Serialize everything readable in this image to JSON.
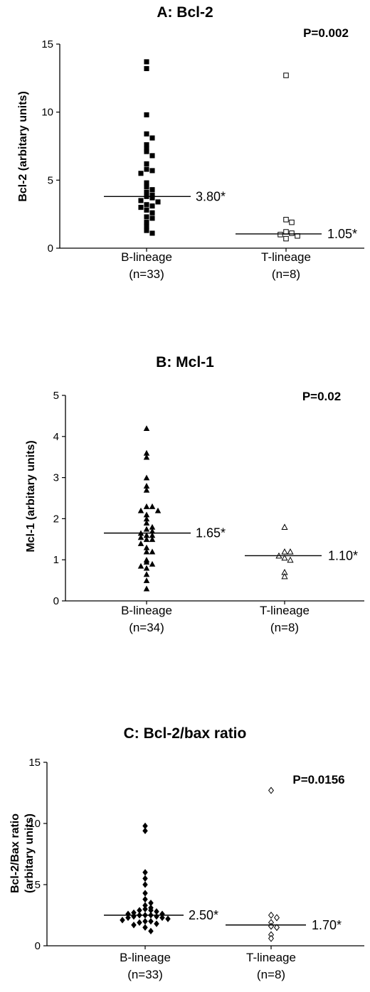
{
  "chart_data": [
    {
      "type": "scatter",
      "title": "A: Bcl-2",
      "annotation": "P=0.002",
      "ylabel": "Bcl-2 (arbitary units)",
      "ylim": [
        0,
        15
      ],
      "yticks": [
        "0",
        "5",
        "10",
        "15"
      ],
      "categories": [
        "B-lineage",
        "T-lineage"
      ],
      "category_counts": [
        "(n=33)",
        "(n=8)"
      ],
      "series": [
        {
          "category": "B-lineage",
          "marker": "filled-square",
          "median": 3.8,
          "median_label": "3.80*",
          "values": [
            13.7,
            13.2,
            9.8,
            8.4,
            8.1,
            7.6,
            7.3,
            7.1,
            6.8,
            6.2,
            5.8,
            5.7,
            5.5,
            4.8,
            4.5,
            4.3,
            4.1,
            3.9,
            3.8,
            3.7,
            3.5,
            3.4,
            3.2,
            3.1,
            3.0,
            2.8,
            2.6,
            2.3,
            2.2,
            1.9,
            1.6,
            1.3,
            1.1
          ]
        },
        {
          "category": "T-lineage",
          "marker": "open-square",
          "median": 1.05,
          "median_label": "1.05*",
          "values": [
            12.7,
            2.1,
            1.9,
            1.2,
            1.1,
            1.0,
            0.9,
            0.7
          ]
        }
      ]
    },
    {
      "type": "scatter",
      "title": "B: Mcl-1",
      "annotation": "P=0.02",
      "ylabel": "Mcl-1 (arbitary units)",
      "ylim": [
        0,
        5
      ],
      "yticks": [
        "0",
        "1",
        "2",
        "3",
        "4",
        "5"
      ],
      "categories": [
        "B-lineage",
        "T-lineage"
      ],
      "category_counts": [
        "(n=34)",
        "(n=8)"
      ],
      "series": [
        {
          "category": "B-lineage",
          "marker": "filled-triangle",
          "median": 1.65,
          "median_label": "1.65*",
          "values": [
            4.2,
            3.6,
            3.5,
            3.0,
            2.8,
            2.7,
            2.3,
            2.3,
            2.2,
            2.2,
            2.1,
            2.0,
            1.9,
            1.8,
            1.75,
            1.7,
            1.65,
            1.6,
            1.6,
            1.55,
            1.5,
            1.5,
            1.4,
            1.3,
            1.2,
            1.2,
            1.0,
            0.95,
            0.9,
            0.85,
            0.8,
            0.65,
            0.5,
            0.3
          ]
        },
        {
          "category": "T-lineage",
          "marker": "open-triangle",
          "median": 1.1,
          "median_label": "1.10*",
          "values": [
            1.8,
            1.2,
            1.2,
            1.1,
            1.05,
            1.0,
            0.7,
            0.6
          ]
        }
      ]
    },
    {
      "type": "scatter",
      "title": "C: Bcl-2/bax ratio",
      "annotation": "P=0.0156",
      "ylabel": "Bcl-2/Bax ratio",
      "ylabel2": "(arbitary units)",
      "ylim": [
        0,
        15
      ],
      "yticks": [
        "0",
        "5",
        "10",
        "15"
      ],
      "categories": [
        "B-lineage",
        "T-lineage"
      ],
      "category_counts": [
        "(n=33)",
        "(n=8)"
      ],
      "series": [
        {
          "category": "B-lineage",
          "marker": "filled-diamond",
          "median": 2.5,
          "median_label": "2.50*",
          "values": [
            9.8,
            9.4,
            6.0,
            5.5,
            5.0,
            4.3,
            3.8,
            3.5,
            3.3,
            3.1,
            3.0,
            2.9,
            2.9,
            2.8,
            2.7,
            2.6,
            2.6,
            2.5,
            2.5,
            2.5,
            2.4,
            2.4,
            2.3,
            2.3,
            2.2,
            2.1,
            2.0,
            2.0,
            1.9,
            1.8,
            1.7,
            1.5,
            1.2
          ]
        },
        {
          "category": "T-lineage",
          "marker": "open-diamond",
          "median": 1.7,
          "median_label": "1.70*",
          "values": [
            12.7,
            2.5,
            2.3,
            1.9,
            1.6,
            1.5,
            0.9,
            0.6
          ]
        }
      ]
    }
  ]
}
